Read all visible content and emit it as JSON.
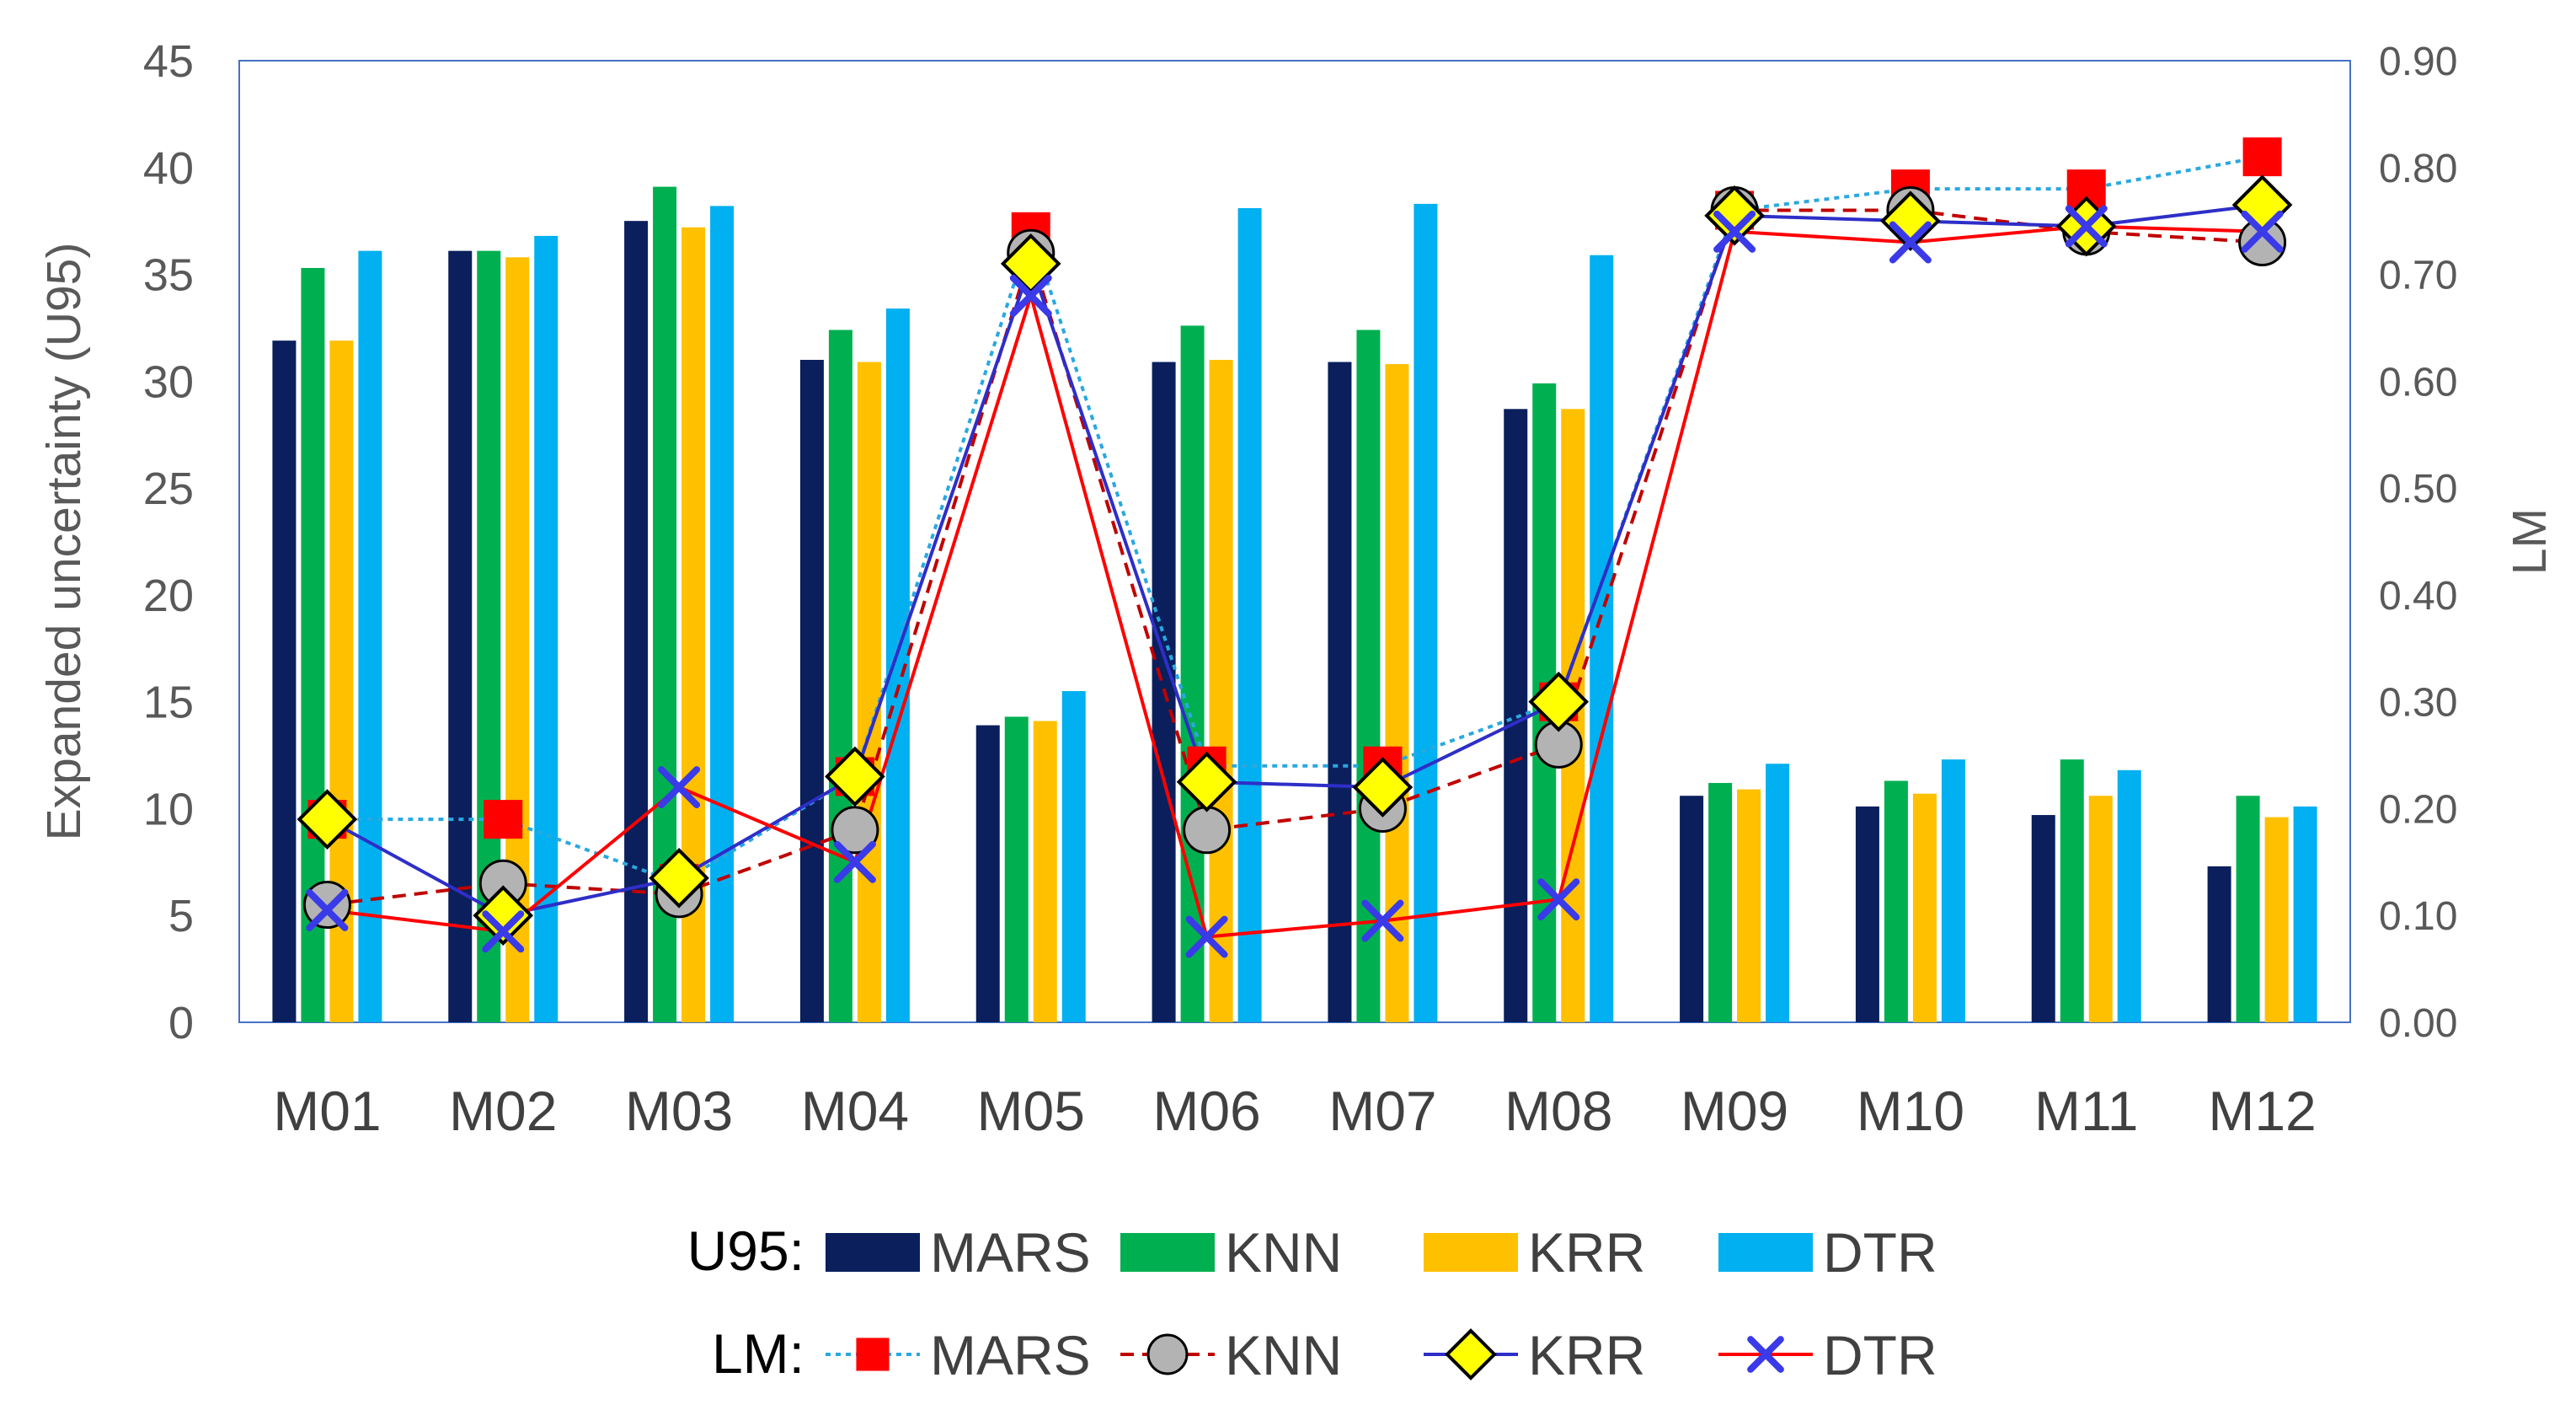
{
  "chart_data": {
    "type": "bar+line",
    "categories": [
      "M01",
      "M02",
      "M03",
      "M04",
      "M05",
      "M06",
      "M07",
      "M08",
      "M09",
      "M10",
      "M11",
      "M12"
    ],
    "ylabel": "Expanded uncertainty (U95)",
    "y2label": "LM",
    "ylim": [
      0,
      45
    ],
    "y2lim": [
      0,
      0.9
    ],
    "yticks": [
      "0",
      "5",
      "10",
      "15",
      "20",
      "25",
      "30",
      "35",
      "40",
      "45"
    ],
    "y2ticks": [
      "0.00",
      "0.10",
      "0.20",
      "0.30",
      "0.40",
      "0.50",
      "0.60",
      "0.70",
      "0.80",
      "0.90"
    ],
    "grid": false,
    "bar_series": [
      {
        "name": "MARS",
        "color": "#0A1F5C",
        "values": [
          31.9,
          36.1,
          37.5,
          31.0,
          13.9,
          30.9,
          30.9,
          28.7,
          10.6,
          10.1,
          9.7,
          7.3
        ]
      },
      {
        "name": "KNN",
        "color": "#00B050",
        "values": [
          35.3,
          36.1,
          39.1,
          32.4,
          14.3,
          32.6,
          32.4,
          29.9,
          11.2,
          11.3,
          12.3,
          10.6
        ]
      },
      {
        "name": "KRR",
        "color": "#FFC000",
        "values": [
          31.9,
          35.8,
          37.2,
          30.9,
          14.1,
          31.0,
          30.8,
          28.7,
          10.9,
          10.7,
          10.6,
          9.6
        ]
      },
      {
        "name": "DTR",
        "color": "#00B0F0",
        "values": [
          36.1,
          36.8,
          38.2,
          33.4,
          15.5,
          38.1,
          38.3,
          35.9,
          12.1,
          12.3,
          11.8,
          10.1
        ]
      }
    ],
    "line_series": [
      {
        "name": "MARS",
        "line_color": "#29A8E0",
        "dash": "dotted",
        "marker": "square",
        "marker_color": "#FF0000",
        "values": [
          0.19,
          0.19,
          0.13,
          0.23,
          0.74,
          0.24,
          0.24,
          0.3,
          0.76,
          0.78,
          0.78,
          0.81
        ]
      },
      {
        "name": "KNN",
        "line_color": "#C00000",
        "dash": "dashed",
        "marker": "circle",
        "marker_color": "#B3B3B3",
        "values": [
          0.11,
          0.13,
          0.12,
          0.18,
          0.72,
          0.18,
          0.2,
          0.26,
          0.76,
          0.76,
          0.74,
          0.73
        ]
      },
      {
        "name": "KRR",
        "line_color": "#2E2EC8",
        "dash": "solid",
        "marker": "diamond",
        "marker_color": "#FFFF00",
        "values": [
          0.19,
          0.1,
          0.135,
          0.23,
          0.71,
          0.225,
          0.22,
          0.3,
          0.755,
          0.75,
          0.745,
          0.765
        ]
      },
      {
        "name": "DTR",
        "line_color": "#FF0000",
        "dash": "solid",
        "marker": "x",
        "marker_color": "#3A3AE8",
        "values": [
          0.105,
          0.085,
          0.22,
          0.15,
          0.68,
          0.08,
          0.095,
          0.115,
          0.74,
          0.73,
          0.745,
          0.74
        ]
      }
    ],
    "legend": {
      "position": "bottom",
      "bar_prefix": "U95:",
      "line_prefix": "LM:"
    }
  }
}
